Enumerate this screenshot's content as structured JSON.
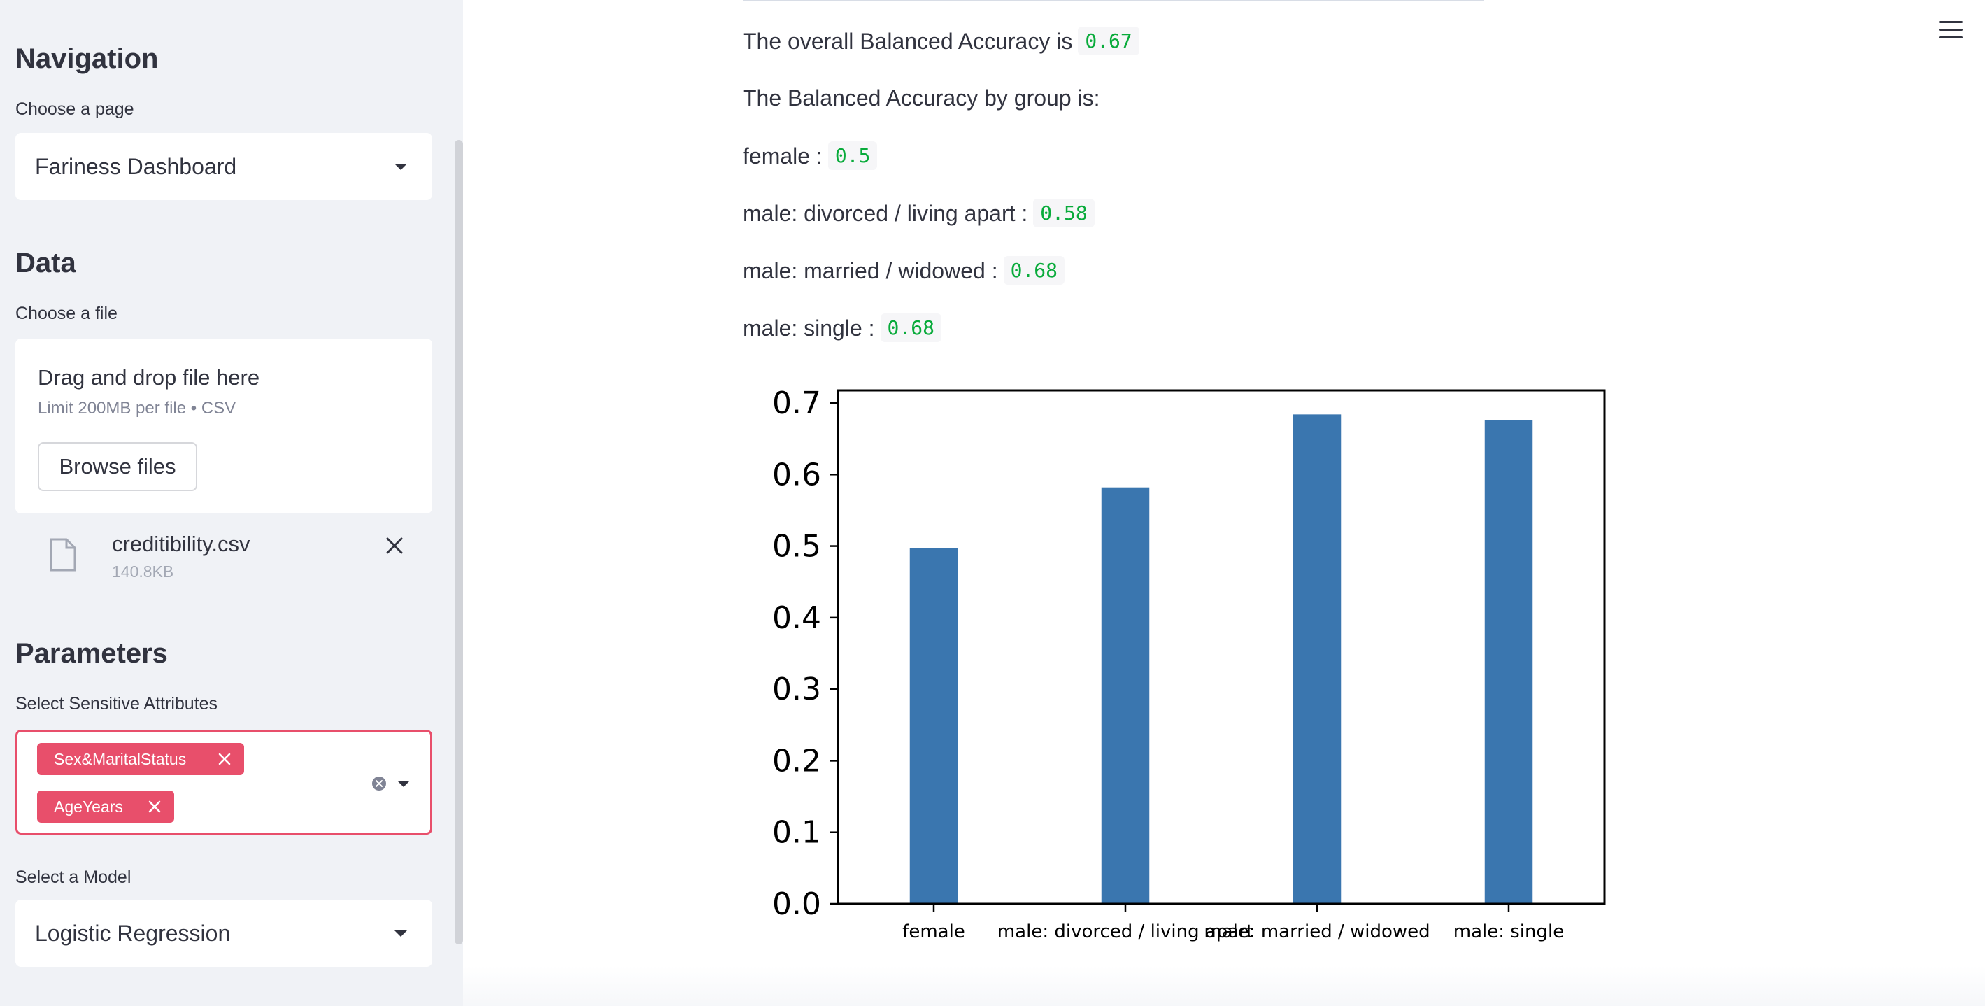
{
  "sidebar": {
    "navigation": {
      "heading": "Navigation",
      "label": "Choose a page",
      "selected": "Fariness Dashboard"
    },
    "data": {
      "heading": "Data",
      "label": "Choose a file",
      "dropzone_title": "Drag and drop file here",
      "dropzone_sub": "Limit 200MB per file • CSV",
      "browse_label": "Browse files",
      "file": {
        "name": "creditibility.csv",
        "size": "140.8KB"
      }
    },
    "parameters": {
      "heading": "Parameters",
      "attributes_label": "Select Sensitive Attributes",
      "attributes": [
        "Sex&MaritalStatus",
        "AgeYears"
      ],
      "model_label": "Select a Model",
      "model_selected": "Logistic Regression"
    }
  },
  "main": {
    "overall_text": "The overall Balanced Accuracy is",
    "overall_value": "0.67",
    "by_group_text": "The Balanced Accuracy by group is:",
    "groups": [
      {
        "label": "female :",
        "value": "0.5"
      },
      {
        "label": "male: divorced / living apart :",
        "value": "0.58"
      },
      {
        "label": "male: married / widowed :",
        "value": "0.68"
      },
      {
        "label": "male: single :",
        "value": "0.68"
      }
    ]
  },
  "chart_data": {
    "type": "bar",
    "categories": [
      "female",
      "male: divorced / living apart",
      "male: married / widowed",
      "male: single"
    ],
    "values": [
      0.497,
      0.582,
      0.684,
      0.676
    ],
    "title": "",
    "xlabel": "",
    "ylabel": "",
    "ylim": [
      0,
      0.7
    ],
    "yticks": [
      "0.0",
      "0.1",
      "0.2",
      "0.3",
      "0.4",
      "0.5",
      "0.6",
      "0.7"
    ],
    "bar_color": "#3a76af",
    "grid": false
  },
  "colors": {
    "accent": "#e84f6b",
    "code_value": "#09ab3b",
    "sidebar_bg": "#f0f2f6"
  }
}
